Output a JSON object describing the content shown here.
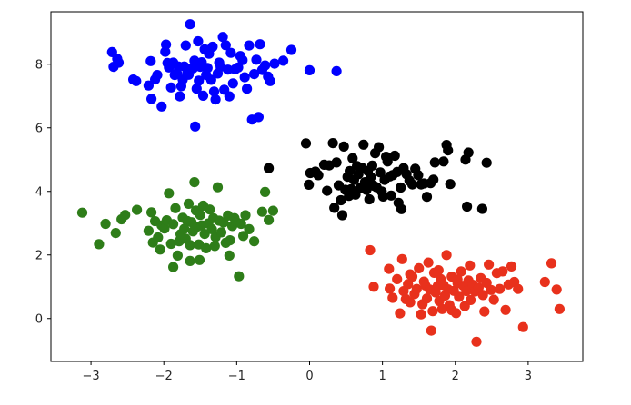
{
  "chart_data": {
    "type": "scatter",
    "title": "",
    "xlabel": "",
    "ylabel": "",
    "xlim": [
      -3.55,
      3.75
    ],
    "ylim": [
      -1.35,
      9.65
    ],
    "xticks": [
      -3,
      -2,
      -1,
      0,
      1,
      2,
      3
    ],
    "yticks": [
      0,
      2,
      4,
      6,
      8
    ],
    "grid": false,
    "legend": false,
    "series": [
      {
        "color": "#0000ff",
        "points": [
          [
            -2.71,
            8.38
          ],
          [
            -2.69,
            7.92
          ],
          [
            -2.64,
            8.17
          ],
          [
            -2.62,
            8.05
          ],
          [
            -2.42,
            7.52
          ],
          [
            -2.38,
            7.47
          ],
          [
            -2.21,
            7.33
          ],
          [
            -2.18,
            8.1
          ],
          [
            -2.17,
            6.91
          ],
          [
            -2.12,
            7.52
          ],
          [
            -2.09,
            7.66
          ],
          [
            -2.03,
            6.67
          ],
          [
            -1.98,
            8.39
          ],
          [
            -1.97,
            8.62
          ],
          [
            -1.95,
            8.04
          ],
          [
            -1.93,
            7.9
          ],
          [
            -1.9,
            7.27
          ],
          [
            -1.87,
            8.05
          ],
          [
            -1.85,
            7.66
          ],
          [
            -1.82,
            7.72
          ],
          [
            -1.8,
            7.93
          ],
          [
            -1.78,
            6.99
          ],
          [
            -1.76,
            7.31
          ],
          [
            -1.74,
            7.52
          ],
          [
            -1.72,
            7.93
          ],
          [
            -1.7,
            8.59
          ],
          [
            -1.68,
            7.71
          ],
          [
            -1.66,
            7.67
          ],
          [
            -1.64,
            9.26
          ],
          [
            -1.62,
            7.87
          ],
          [
            -1.6,
            7.87
          ],
          [
            -1.58,
            8.11
          ],
          [
            -1.57,
            6.04
          ],
          [
            -1.55,
            7.23
          ],
          [
            -1.53,
            8.72
          ],
          [
            -1.52,
            7.48
          ],
          [
            -1.5,
            7.92
          ],
          [
            -1.48,
            8.06
          ],
          [
            -1.46,
            7.01
          ],
          [
            -1.44,
            8.47
          ],
          [
            -1.42,
            7.66
          ],
          [
            -1.4,
            7.88
          ],
          [
            -1.38,
            8.33
          ],
          [
            -1.35,
            7.51
          ],
          [
            -1.33,
            8.55
          ],
          [
            -1.31,
            7.14
          ],
          [
            -1.29,
            6.89
          ],
          [
            -1.26,
            7.71
          ],
          [
            -1.24,
            8.05
          ],
          [
            -1.22,
            7.92
          ],
          [
            -1.19,
            8.86
          ],
          [
            -1.17,
            7.2
          ],
          [
            -1.15,
            8.6
          ],
          [
            -1.12,
            7.83
          ],
          [
            -1.1,
            6.99
          ],
          [
            -1.08,
            8.36
          ],
          [
            -1.05,
            7.4
          ],
          [
            -1.02,
            7.84
          ],
          [
            -0.98,
            7.9
          ],
          [
            -0.95,
            8.26
          ],
          [
            -0.92,
            8.13
          ],
          [
            -0.89,
            7.59
          ],
          [
            -0.86,
            7.23
          ],
          [
            -0.83,
            8.59
          ],
          [
            -0.79,
            6.26
          ],
          [
            -0.76,
            7.69
          ],
          [
            -0.73,
            8.14
          ],
          [
            -0.7,
            6.34
          ],
          [
            -0.68,
            8.63
          ],
          [
            -0.65,
            7.82
          ],
          [
            -0.61,
            7.96
          ],
          [
            -0.57,
            7.61
          ],
          [
            -0.54,
            7.47
          ],
          [
            -0.48,
            8.02
          ],
          [
            -0.36,
            8.11
          ],
          [
            -0.25,
            8.45
          ],
          [
            0.0,
            7.81
          ],
          [
            0.37,
            7.78
          ]
        ]
      },
      {
        "color": "#000000",
        "points": [
          [
            -0.56,
            4.73
          ],
          [
            -0.05,
            5.51
          ],
          [
            -0.01,
            4.21
          ],
          [
            0.01,
            4.58
          ],
          [
            0.08,
            4.62
          ],
          [
            0.12,
            4.51
          ],
          [
            0.2,
            4.84
          ],
          [
            0.24,
            4.02
          ],
          [
            0.27,
            4.82
          ],
          [
            0.32,
            5.52
          ],
          [
            0.34,
            3.48
          ],
          [
            0.37,
            4.91
          ],
          [
            0.4,
            4.19
          ],
          [
            0.43,
            3.72
          ],
          [
            0.45,
            3.25
          ],
          [
            0.47,
            5.41
          ],
          [
            0.49,
            4.05
          ],
          [
            0.52,
            4.46
          ],
          [
            0.54,
            3.86
          ],
          [
            0.55,
            4.64
          ],
          [
            0.57,
            4.07
          ],
          [
            0.59,
            5.04
          ],
          [
            0.61,
            4.36
          ],
          [
            0.63,
            3.9
          ],
          [
            0.65,
            4.8
          ],
          [
            0.67,
            4.54
          ],
          [
            0.7,
            4.12
          ],
          [
            0.72,
            4.74
          ],
          [
            0.74,
            5.47
          ],
          [
            0.76,
            4.29
          ],
          [
            0.78,
            4.05
          ],
          [
            0.8,
            4.64
          ],
          [
            0.82,
            3.75
          ],
          [
            0.84,
            4.45
          ],
          [
            0.86,
            4.81
          ],
          [
            0.88,
            4.18
          ],
          [
            0.9,
            5.2
          ],
          [
            0.92,
            4.13
          ],
          [
            0.95,
            5.39
          ],
          [
            0.97,
            4.6
          ],
          [
            0.99,
            4.0
          ],
          [
            1.01,
            3.84
          ],
          [
            1.03,
            4.36
          ],
          [
            1.05,
            5.09
          ],
          [
            1.07,
            4.94
          ],
          [
            1.1,
            4.47
          ],
          [
            1.12,
            3.87
          ],
          [
            1.14,
            4.51
          ],
          [
            1.17,
            5.12
          ],
          [
            1.2,
            4.61
          ],
          [
            1.22,
            3.64
          ],
          [
            1.25,
            4.12
          ],
          [
            1.26,
            3.44
          ],
          [
            1.29,
            4.73
          ],
          [
            1.33,
            4.54
          ],
          [
            1.37,
            4.34
          ],
          [
            1.41,
            4.22
          ],
          [
            1.45,
            4.71
          ],
          [
            1.49,
            4.51
          ],
          [
            1.53,
            4.22
          ],
          [
            1.57,
            4.25
          ],
          [
            1.61,
            3.83
          ],
          [
            1.66,
            4.26
          ],
          [
            1.7,
            4.37
          ],
          [
            1.72,
            4.91
          ],
          [
            1.84,
            4.94
          ],
          [
            1.88,
            5.46
          ],
          [
            1.9,
            5.29
          ],
          [
            1.93,
            4.23
          ],
          [
            2.14,
            5.0
          ],
          [
            2.16,
            3.52
          ],
          [
            2.18,
            5.22
          ],
          [
            2.37,
            3.45
          ],
          [
            2.43,
            4.9
          ]
        ]
      },
      {
        "color": "#2e7d19",
        "points": [
          [
            -3.12,
            3.33
          ],
          [
            -2.89,
            2.34
          ],
          [
            -2.8,
            2.98
          ],
          [
            -2.66,
            2.69
          ],
          [
            -2.58,
            3.12
          ],
          [
            -2.53,
            3.26
          ],
          [
            -2.37,
            3.42
          ],
          [
            -2.21,
            2.76
          ],
          [
            -2.17,
            3.34
          ],
          [
            -2.15,
            2.39
          ],
          [
            -2.12,
            3.06
          ],
          [
            -2.08,
            2.55
          ],
          [
            -2.05,
            2.17
          ],
          [
            -2.03,
            2.93
          ],
          [
            -1.99,
            2.83
          ],
          [
            -1.96,
            3.09
          ],
          [
            -1.93,
            3.94
          ],
          [
            -1.9,
            2.35
          ],
          [
            -1.87,
            2.97
          ],
          [
            -1.84,
            3.47
          ],
          [
            -1.81,
            1.98
          ],
          [
            -1.79,
            2.43
          ],
          [
            -1.77,
            2.65
          ],
          [
            -1.74,
            3.17
          ],
          [
            -1.72,
            2.82
          ],
          [
            -1.7,
            2.51
          ],
          [
            -1.68,
            3.07
          ],
          [
            -1.66,
            3.61
          ],
          [
            -1.64,
            2.31
          ],
          [
            -1.62,
            3.03
          ],
          [
            -1.6,
            2.74
          ],
          [
            -1.58,
            4.29
          ],
          [
            -1.56,
            3.4
          ],
          [
            -1.54,
            2.89
          ],
          [
            -1.52,
            2.33
          ],
          [
            -1.5,
            3.26
          ],
          [
            -1.48,
            2.93
          ],
          [
            -1.46,
            3.55
          ],
          [
            -1.44,
            2.66
          ],
          [
            -1.42,
            2.21
          ],
          [
            -1.39,
            2.99
          ],
          [
            -1.37,
            3.43
          ],
          [
            -1.34,
            2.81
          ],
          [
            -1.32,
            3.16
          ],
          [
            -1.29,
            2.56
          ],
          [
            -1.26,
            4.13
          ],
          [
            -1.24,
            3.08
          ],
          [
            -1.21,
            2.71
          ],
          [
            -1.18,
            3.02
          ],
          [
            -1.15,
            2.38
          ],
          [
            -1.12,
            3.24
          ],
          [
            -1.09,
            2.46
          ],
          [
            -1.06,
            2.91
          ],
          [
            -1.03,
            3.16
          ],
          [
            -1.0,
            3.03
          ],
          [
            -0.97,
            1.33
          ],
          [
            -0.94,
            2.98
          ],
          [
            -0.91,
            2.6
          ],
          [
            -0.88,
            3.25
          ],
          [
            -0.83,
            2.81
          ],
          [
            -0.76,
            2.43
          ],
          [
            -0.65,
            3.36
          ],
          [
            -0.61,
            3.98
          ],
          [
            -0.56,
            3.1
          ],
          [
            -0.5,
            3.39
          ],
          [
            -1.87,
            1.62
          ],
          [
            -1.64,
            1.81
          ],
          [
            -1.51,
            1.84
          ],
          [
            -1.3,
            2.28
          ],
          [
            -1.1,
            1.98
          ]
        ]
      },
      {
        "color": "#e8311c",
        "points": [
          [
            0.83,
            2.15
          ],
          [
            0.88,
            1.0
          ],
          [
            1.09,
            1.56
          ],
          [
            1.1,
            0.94
          ],
          [
            1.14,
            0.65
          ],
          [
            1.2,
            1.24
          ],
          [
            1.24,
            0.16
          ],
          [
            1.27,
            1.87
          ],
          [
            1.29,
            0.86
          ],
          [
            1.32,
            0.61
          ],
          [
            1.35,
            1.08
          ],
          [
            1.38,
            0.51
          ],
          [
            1.41,
            1.32
          ],
          [
            1.44,
            0.77
          ],
          [
            1.47,
            0.93
          ],
          [
            1.5,
            1.58
          ],
          [
            1.53,
            0.13
          ],
          [
            1.55,
            0.45
          ],
          [
            1.57,
            1.16
          ],
          [
            1.59,
            1.04
          ],
          [
            1.61,
            0.63
          ],
          [
            1.63,
            1.76
          ],
          [
            1.65,
            0.91
          ],
          [
            1.67,
            -0.38
          ],
          [
            1.69,
            0.23
          ],
          [
            1.71,
            1.44
          ],
          [
            1.73,
            0.82
          ],
          [
            1.76,
            1.03
          ],
          [
            1.78,
            0.55
          ],
          [
            1.8,
            1.24
          ],
          [
            1.82,
            0.3
          ],
          [
            1.84,
            1.05
          ],
          [
            1.86,
            0.72
          ],
          [
            1.88,
            2.0
          ],
          [
            1.9,
            0.92
          ],
          [
            1.92,
            0.42
          ],
          [
            1.95,
            1.32
          ],
          [
            1.98,
            0.87
          ],
          [
            2.01,
            0.17
          ],
          [
            2.03,
            1.11
          ],
          [
            2.05,
            0.68
          ],
          [
            2.08,
            1.48
          ],
          [
            2.11,
            1.03
          ],
          [
            2.13,
            0.39
          ],
          [
            2.15,
            0.86
          ],
          [
            2.18,
            1.2
          ],
          [
            2.21,
            0.58
          ],
          [
            2.24,
            1.06
          ],
          [
            2.27,
            0.85
          ],
          [
            2.29,
            -0.73
          ],
          [
            2.32,
            0.97
          ],
          [
            2.35,
            1.27
          ],
          [
            2.38,
            0.74
          ],
          [
            2.4,
            0.22
          ],
          [
            2.43,
            1.12
          ],
          [
            2.46,
            1.7
          ],
          [
            2.49,
            0.9
          ],
          [
            2.53,
            0.59
          ],
          [
            2.57,
            1.43
          ],
          [
            2.61,
            0.93
          ],
          [
            2.65,
            1.48
          ],
          [
            2.69,
            0.27
          ],
          [
            2.73,
            1.07
          ],
          [
            2.77,
            1.64
          ],
          [
            2.81,
            1.15
          ],
          [
            2.86,
            0.93
          ],
          [
            2.93,
            -0.27
          ],
          [
            3.23,
            1.15
          ],
          [
            3.32,
            1.74
          ],
          [
            3.39,
            0.91
          ],
          [
            3.43,
            0.3
          ],
          [
            2.2,
            1.67
          ],
          [
            2.03,
            1.23
          ],
          [
            1.95,
            0.26
          ],
          [
            1.77,
            1.52
          ],
          [
            1.38,
            1.39
          ]
        ]
      }
    ]
  }
}
